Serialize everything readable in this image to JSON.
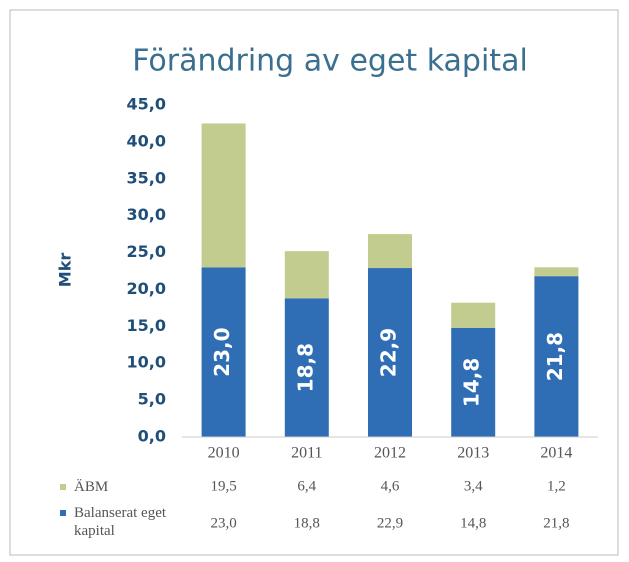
{
  "chart_data": {
    "type": "bar",
    "stacked": true,
    "title": "Förändring av eget kapital",
    "y_label": "Mkr",
    "categories": [
      "2010",
      "2011",
      "2012",
      "2013",
      "2014"
    ],
    "series": [
      {
        "name": "ÄBM",
        "color": "#c3cc8f",
        "values": [
          19.5,
          6.4,
          4.6,
          3.4,
          1.2
        ],
        "value_labels": [
          "19,5",
          "6,4",
          "4,6",
          "3,4",
          "1,2"
        ]
      },
      {
        "name": "Balanserat eget kapital",
        "color": "#2f6db5",
        "values": [
          23.0,
          18.8,
          22.9,
          14.8,
          21.8
        ],
        "value_labels": [
          "23,0",
          "18,8",
          "22,9",
          "14,8",
          "21,8"
        ]
      }
    ],
    "ylim": [
      0,
      45
    ],
    "yticks": [
      {
        "value": 0,
        "label": "0,0"
      },
      {
        "value": 5,
        "label": "5,0"
      },
      {
        "value": 10,
        "label": "10,0"
      },
      {
        "value": 15,
        "label": "15,0"
      },
      {
        "value": 20,
        "label": "20,0"
      },
      {
        "value": 25,
        "label": "25,0"
      },
      {
        "value": 30,
        "label": "30,0"
      },
      {
        "value": 35,
        "label": "35,0"
      },
      {
        "value": 40,
        "label": "40,0"
      },
      {
        "value": 45,
        "label": "45,0"
      }
    ],
    "grid": false
  }
}
